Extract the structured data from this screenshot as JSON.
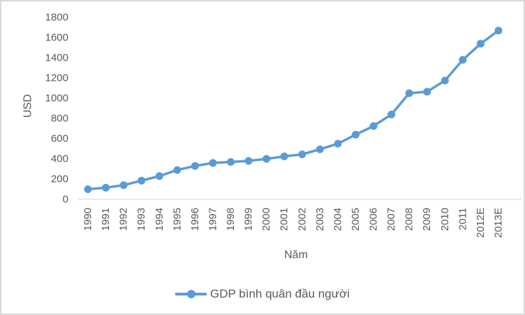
{
  "chart_data": {
    "type": "line",
    "title": "",
    "xlabel": "Năm",
    "ylabel": "USD",
    "ylim": [
      0,
      1800
    ],
    "ytick_step": 200,
    "grid": false,
    "legend_position": "bottom-center",
    "categories": [
      "1990",
      "1991",
      "1992",
      "1993",
      "1994",
      "1995",
      "1996",
      "1997",
      "1998",
      "1999",
      "2000",
      "2001",
      "2002",
      "2003",
      "2004",
      "2005",
      "2006",
      "2007",
      "2008",
      "2009",
      "2010",
      "2011",
      "2012E",
      "2013E"
    ],
    "series": [
      {
        "name": "GDP bình quân đầu người",
        "values": [
          100,
          115,
          140,
          185,
          230,
          290,
          330,
          360,
          370,
          380,
          400,
          425,
          445,
          495,
          550,
          640,
          725,
          840,
          1050,
          1065,
          1175,
          1380,
          1540,
          1670
        ]
      }
    ],
    "colors": {
      "line": "#5B9BD5",
      "marker": "#5B9BD5",
      "text": "#595959",
      "axis_line": "#d3d3d3",
      "frame_border": "#d9d9d9"
    }
  }
}
